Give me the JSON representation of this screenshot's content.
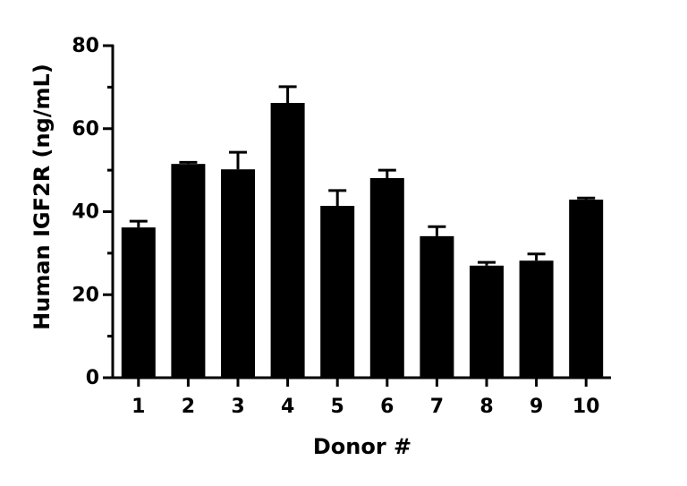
{
  "chart_data": {
    "type": "bar",
    "x_label": "Donor #",
    "y_label": "Human IGF2R (ng/mL)",
    "categories": [
      "1",
      "2",
      "3",
      "4",
      "5",
      "6",
      "7",
      "8",
      "9",
      "10"
    ],
    "values": [
      36.2,
      51.5,
      50.2,
      66.2,
      41.4,
      48.1,
      34.1,
      27.0,
      28.2,
      42.9
    ],
    "errors": [
      1.5,
      0.4,
      4.1,
      3.9,
      3.7,
      1.9,
      2.3,
      0.8,
      1.6,
      0.4
    ],
    "color": "#000000",
    "ylim": [
      0,
      80
    ],
    "yticks": [
      0,
      20,
      40,
      60,
      80
    ],
    "yminorticks": [
      10,
      30,
      50,
      70
    ],
    "grid": false
  }
}
